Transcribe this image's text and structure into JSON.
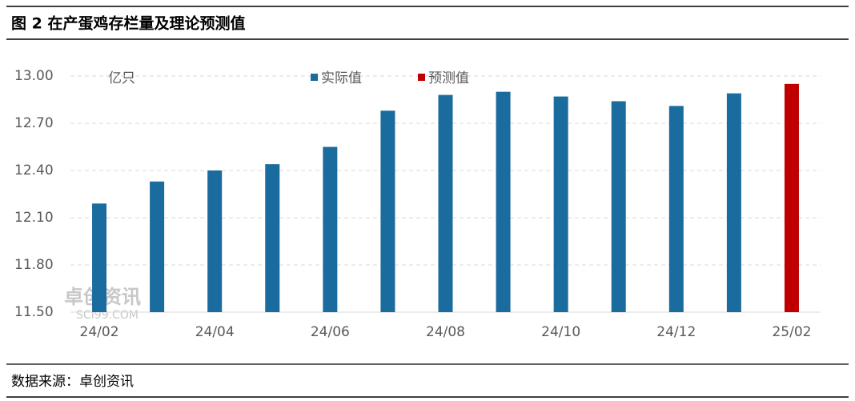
{
  "chart_data": {
    "type": "bar",
    "title": "图 2 在产蛋鸡存栏量及理论预测值",
    "y_unit": "亿只",
    "source": "数据来源：卓创资讯",
    "watermark": [
      "卓创资讯",
      "SCI99.COM"
    ],
    "categories": [
      "24/02",
      null,
      "24/04",
      null,
      "24/06",
      null,
      "24/08",
      null,
      "24/10",
      null,
      "24/12",
      null,
      "25/02"
    ],
    "series": [
      {
        "name": "实际值",
        "color": "#1b6c9e",
        "values": [
          12.19,
          12.33,
          12.4,
          12.44,
          12.55,
          12.78,
          12.88,
          12.9,
          12.87,
          12.84,
          12.81,
          12.89,
          null
        ]
      },
      {
        "name": "预测值",
        "color": "#c00000",
        "values": [
          null,
          null,
          null,
          null,
          null,
          null,
          null,
          null,
          null,
          null,
          null,
          null,
          12.95
        ]
      }
    ],
    "ylim": [
      11.5,
      13.0
    ],
    "yticks": [
      {
        "value": 11.5,
        "label": "11.50"
      },
      {
        "value": 11.8,
        "label": "11.80"
      },
      {
        "value": 12.1,
        "label": "12.10"
      },
      {
        "value": 12.4,
        "label": "12.40"
      },
      {
        "value": 12.7,
        "label": "12.70"
      },
      {
        "value": 13.0,
        "label": "13.00"
      }
    ],
    "grid": true
  }
}
